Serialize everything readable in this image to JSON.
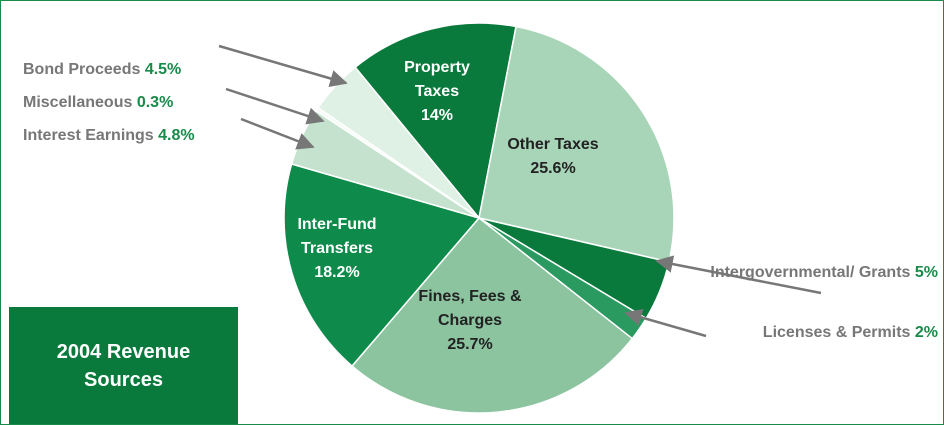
{
  "chart_data": {
    "type": "pie",
    "title": "2004 Revenue Sources",
    "categories": [
      "Property Taxes",
      "Other Taxes",
      "Intergovernmental/ Grants",
      "Licenses & Permits",
      "Fines, Fees & Charges",
      "Inter-Fund Transfers",
      "Interest Earnings",
      "Miscellaneous",
      "Bond Proceeds"
    ],
    "values": [
      14,
      25.6,
      5,
      2,
      25.7,
      18.2,
      4.8,
      0.3,
      4.5
    ],
    "value_labels": [
      "14%",
      "25.6%",
      "5%",
      "2%",
      "25.7%",
      "18.2%",
      "4.8%",
      "0.3%",
      "4.5%"
    ],
    "colors": [
      "#0a7a3c",
      "#a8d4b8",
      "#0a7a3c",
      "#2a9a60",
      "#8cc4a0",
      "#0e8a4a",
      "#c5e2cf",
      "#f4faf6",
      "#dff0e4"
    ]
  }
}
